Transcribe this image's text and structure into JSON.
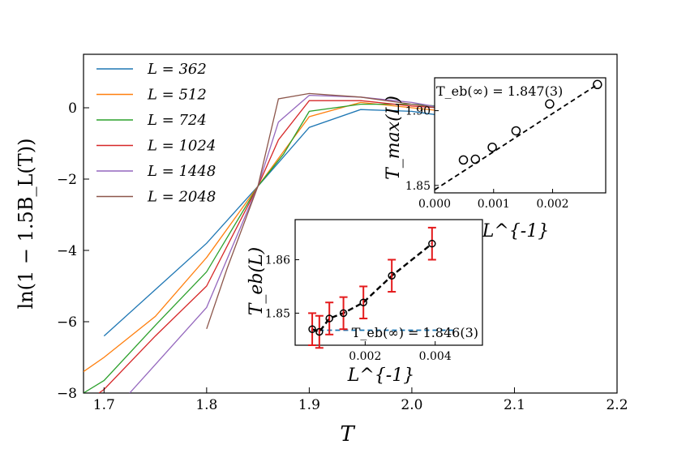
{
  "chart_data": [
    {
      "id": "main",
      "type": "line",
      "xlabel": "T",
      "ylabel": "ln(1 − 1.5B_L(T))",
      "xlim": [
        1.68,
        2.2
      ],
      "ylim": [
        -8,
        1.5
      ],
      "xticks": [
        1.7,
        1.8,
        1.9,
        2.0,
        2.1,
        2.2
      ],
      "xtick_labels": [
        "1.7",
        "1.8",
        "1.9",
        "2.0",
        "2.1",
        "2.2"
      ],
      "yticks": [
        -8,
        -6,
        -4,
        -2,
        0
      ],
      "ytick_labels": [
        "−8",
        "−6",
        "−4",
        "−2",
        "0"
      ],
      "legend": {
        "position": "upper-left",
        "entries": [
          "L = 362",
          "L = 512",
          "L = 724",
          "L = 1024",
          "L = 1448",
          "L = 2048"
        ]
      },
      "series": [
        {
          "name": "L = 362",
          "color": "#1f77b4",
          "x": [
            1.7,
            1.75,
            1.8,
            1.85,
            1.9,
            1.95,
            2.0,
            2.05
          ],
          "y": [
            -6.4,
            -5.1,
            -3.8,
            -2.2,
            -0.55,
            -0.05,
            -0.1,
            -0.3
          ]
        },
        {
          "name": "L = 512",
          "color": "#ff7f0e",
          "x": [
            1.68,
            1.7,
            1.75,
            1.8,
            1.85,
            1.9,
            1.95,
            2.0,
            2.05
          ],
          "y": [
            -7.4,
            -7.0,
            -5.85,
            -4.2,
            -2.2,
            -0.25,
            0.15,
            0.0,
            -0.15
          ]
        },
        {
          "name": "L = 724",
          "color": "#2ca02c",
          "x": [
            1.68,
            1.7,
            1.75,
            1.8,
            1.85,
            1.875,
            1.9,
            1.95,
            2.0,
            2.05
          ],
          "y": [
            -8.0,
            -7.65,
            -6.1,
            -4.6,
            -2.2,
            -1.3,
            -0.1,
            0.1,
            0.1,
            0.0
          ]
        },
        {
          "name": "L = 1024",
          "color": "#d62728",
          "x": [
            1.695,
            1.7,
            1.75,
            1.8,
            1.85,
            1.87,
            1.9,
            1.95,
            2.0,
            2.05
          ],
          "y": [
            -8.0,
            -7.9,
            -6.4,
            -5.0,
            -2.2,
            -0.9,
            0.2,
            0.2,
            0.05,
            -0.05
          ]
        },
        {
          "name": "L = 1448",
          "color": "#9467bd",
          "x": [
            1.725,
            1.75,
            1.8,
            1.85,
            1.87,
            1.9,
            1.95,
            2.0,
            2.05
          ],
          "y": [
            -8.0,
            -7.2,
            -5.6,
            -2.2,
            -0.4,
            0.35,
            0.3,
            0.15,
            -0.1
          ]
        },
        {
          "name": "L = 2048",
          "color": "#8c564b",
          "x": [
            1.8,
            1.82,
            1.85,
            1.87,
            1.9,
            1.95,
            2.0,
            2.05
          ],
          "y": [
            -6.2,
            -4.5,
            -2.2,
            0.25,
            0.4,
            0.3,
            0.1,
            -0.1
          ]
        }
      ]
    },
    {
      "id": "inset_top",
      "type": "scatter",
      "xlabel": "L^{-1}",
      "ylabel": "T_max(L)",
      "xlim": [
        0.0,
        0.0029
      ],
      "ylim": [
        1.845,
        1.922
      ],
      "xticks": [
        0.0,
        0.001,
        0.002
      ],
      "xtick_labels": [
        "0.000",
        "0.001",
        "0.002"
      ],
      "yticks": [
        1.85,
        1.9
      ],
      "ytick_labels": [
        "1.85",
        "1.90"
      ],
      "annotation": "T_eb(∞) = 1.847(3)",
      "points": {
        "x": [
          0.000488,
          0.000691,
          0.000977,
          0.00138,
          0.00195,
          0.00276
        ],
        "y": [
          1.867,
          1.8675,
          1.8755,
          1.8865,
          1.9045,
          1.9175
        ]
      },
      "fit": {
        "x": [
          0.0,
          0.00276
        ],
        "y": [
          1.847,
          1.9175
        ],
        "style": "dashed"
      }
    },
    {
      "id": "inset_bottom",
      "type": "scatter",
      "xlabel": "L^{-1}",
      "ylabel": "T_eb(L)",
      "xlim": [
        0.0,
        0.00535
      ],
      "ylim": [
        1.844,
        1.8675
      ],
      "xticks": [
        0.002,
        0.004
      ],
      "xtick_labels": [
        "0.002",
        "0.004"
      ],
      "yticks": [
        1.85,
        1.86
      ],
      "ytick_labels": [
        "1.85",
        "1.86"
      ],
      "annotation": "T_eb(∞) = 1.846(3)",
      "points": {
        "x": [
          0.000488,
          0.000691,
          0.000977,
          0.00138,
          0.00195,
          0.00276,
          0.00391
        ],
        "y": [
          1.847,
          1.8465,
          1.849,
          1.85,
          1.852,
          1.857,
          1.863
        ],
        "err": [
          0.003,
          0.003,
          0.003,
          0.003,
          0.003,
          0.003,
          0.003
        ]
      },
      "hline": {
        "y": 1.8468,
        "x": [
          0.00045,
          0.0046
        ],
        "color": "#1f77b4",
        "style": "dashed"
      }
    }
  ]
}
